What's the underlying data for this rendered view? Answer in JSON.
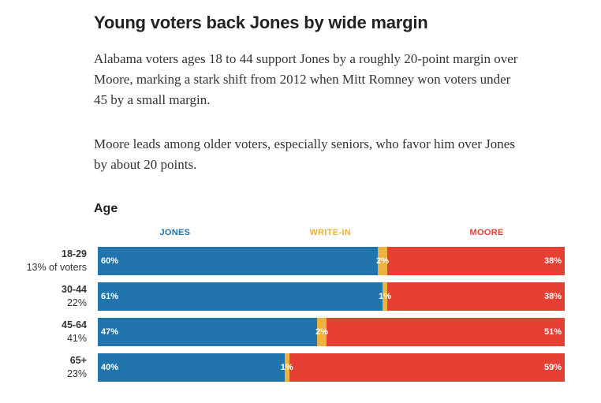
{
  "headline": "Young voters back Jones by wide margin",
  "paragraphs": [
    "Alabama voters ages 18 to 44 support Jones by a roughly 20-point margin over Moore, marking a stark shift from 2012 when Mitt Romney won voters under 45 by a small margin.",
    "Moore leads among older voters, especially seniors, who favor him over Jones by about 20 points."
  ],
  "section_title": "Age",
  "chart_data": {
    "type": "bar",
    "orientation": "horizontal-stacked-100",
    "categories": [
      "18-29",
      "30-44",
      "45-64",
      "65+"
    ],
    "category_notes": [
      "13% of voters",
      "22%",
      "41%",
      "23%"
    ],
    "series": [
      {
        "name": "JONES",
        "values": [
          60,
          61,
          47,
          40
        ],
        "labels": [
          "60%",
          "61%",
          "47%",
          "40%"
        ],
        "color": "#2274ac"
      },
      {
        "name": "WRITE-IN",
        "values": [
          2,
          1,
          2,
          1
        ],
        "labels": [
          "2%",
          "1%",
          "2%",
          "1%"
        ],
        "color": "#f0b23e"
      },
      {
        "name": "MOORE",
        "values": [
          38,
          38,
          51,
          59
        ],
        "labels": [
          "38%",
          "38%",
          "51%",
          "59%"
        ],
        "color": "#e63f34"
      }
    ],
    "xlim": [
      0,
      100
    ]
  }
}
